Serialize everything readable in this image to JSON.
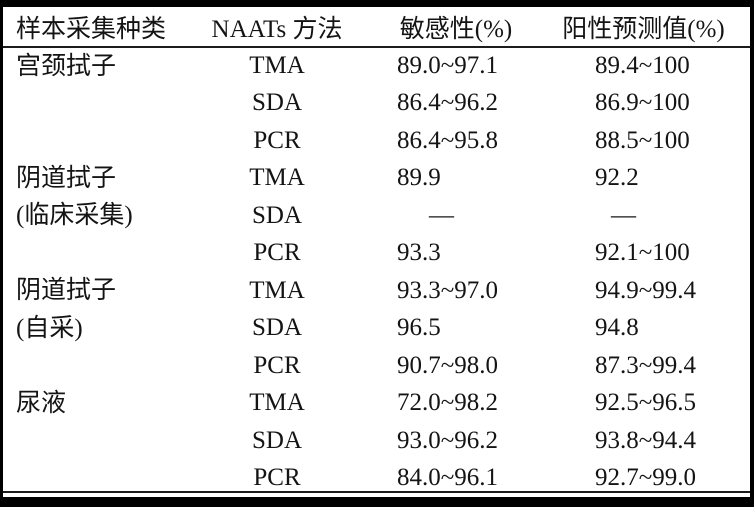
{
  "table": {
    "headers": {
      "sample_type": "样本采集种类",
      "method": "NAATs 方法",
      "sensitivity": "敏感性(%)",
      "ppv": "阳性预测值(%)"
    },
    "groups": [
      {
        "label_lines": [
          "宫颈拭子"
        ],
        "rows": [
          {
            "method": "TMA",
            "sensitivity": "89.0~97.1",
            "ppv": "89.4~100"
          },
          {
            "method": "SDA",
            "sensitivity": "86.4~96.2",
            "ppv": "86.9~100"
          },
          {
            "method": "PCR",
            "sensitivity": "86.4~95.8",
            "ppv": "88.5~100"
          }
        ]
      },
      {
        "label_lines": [
          "阴道拭子",
          "(临床采集)"
        ],
        "rows": [
          {
            "method": "TMA",
            "sensitivity": "89.9",
            "ppv": "92.2"
          },
          {
            "method": "SDA",
            "sensitivity": "—",
            "ppv": "—"
          },
          {
            "method": "PCR",
            "sensitivity": "93.3",
            "ppv": "92.1~100"
          }
        ]
      },
      {
        "label_lines": [
          "阴道拭子",
          "(自采)"
        ],
        "rows": [
          {
            "method": "TMA",
            "sensitivity": "93.3~97.0",
            "ppv": "94.9~99.4"
          },
          {
            "method": "SDA",
            "sensitivity": "96.5",
            "ppv": "94.8"
          },
          {
            "method": "PCR",
            "sensitivity": "90.7~98.0",
            "ppv": "87.3~99.4"
          }
        ]
      },
      {
        "label_lines": [
          "尿液"
        ],
        "rows": [
          {
            "method": "TMA",
            "sensitivity": "72.0~98.2",
            "ppv": "92.5~96.5"
          },
          {
            "method": "SDA",
            "sensitivity": "93.0~96.2",
            "ppv": "93.8~94.4"
          },
          {
            "method": "PCR",
            "sensitivity": "84.0~96.1",
            "ppv": "92.7~99.0"
          }
        ]
      }
    ]
  }
}
